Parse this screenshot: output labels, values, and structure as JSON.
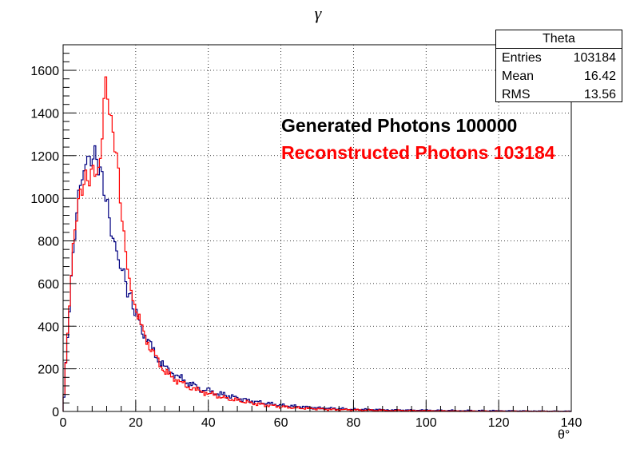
{
  "title": "γ",
  "stats": {
    "name": "Theta",
    "rows": [
      {
        "label": "Entries",
        "value": "103184"
      },
      {
        "label": "Mean",
        "value": "16.42"
      },
      {
        "label": "RMS",
        "value": "13.56"
      }
    ]
  },
  "legend": {
    "generated": "Generated Photons 100000",
    "reconstructed": "Reconstructed Photons 103184"
  },
  "chart_data": {
    "type": "line",
    "subtype": "histogram-step",
    "xlabel": "θ°",
    "ylabel": "",
    "xlim": [
      0,
      140
    ],
    "ylim": [
      0,
      1720
    ],
    "xticks": [
      0,
      20,
      40,
      60,
      80,
      100,
      120,
      140
    ],
    "yticks": [
      0,
      200,
      400,
      600,
      800,
      1000,
      1200,
      1400,
      1600
    ],
    "grid": true,
    "colors": {
      "generated": "#000080",
      "reconstructed": "#ff0000"
    },
    "series": [
      {
        "key": "generated",
        "x": [
          0,
          1,
          2,
          3,
          4,
          5,
          6,
          7,
          8,
          9,
          10,
          11,
          12,
          13,
          14,
          15,
          16,
          17,
          18,
          19,
          20,
          22,
          24,
          26,
          28,
          30,
          32,
          34,
          36,
          38,
          40,
          45,
          50,
          55,
          60,
          65,
          70,
          75,
          80,
          90,
          100,
          110,
          120,
          130,
          140
        ],
        "values": [
          0,
          280,
          560,
          790,
          980,
          1090,
          1150,
          1180,
          1200,
          1190,
          1150,
          1070,
          980,
          880,
          790,
          730,
          680,
          620,
          560,
          510,
          460,
          380,
          310,
          250,
          210,
          180,
          160,
          140,
          120,
          105,
          95,
          75,
          55,
          40,
          30,
          22,
          17,
          13,
          10,
          7,
          5,
          4,
          3,
          2,
          1
        ]
      },
      {
        "key": "reconstructed",
        "x": [
          0,
          1,
          2,
          3,
          4,
          5,
          6,
          7,
          8,
          9,
          10,
          11,
          11.5,
          12,
          13,
          14,
          15,
          16,
          17,
          18,
          19,
          20,
          22,
          24,
          26,
          28,
          30,
          32,
          34,
          36,
          38,
          40,
          45,
          50,
          55,
          60,
          65,
          70,
          75,
          80,
          90,
          100,
          110,
          120,
          130,
          140
        ],
        "values": [
          0,
          300,
          580,
          820,
          960,
          1040,
          1080,
          1100,
          1120,
          1120,
          1150,
          1300,
          1620,
          1520,
          1370,
          1300,
          1150,
          960,
          780,
          640,
          550,
          470,
          380,
          300,
          240,
          190,
          160,
          140,
          120,
          105,
          95,
          85,
          62,
          45,
          32,
          22,
          16,
          12,
          9,
          7,
          5,
          3,
          2,
          1,
          1,
          0
        ]
      }
    ]
  }
}
